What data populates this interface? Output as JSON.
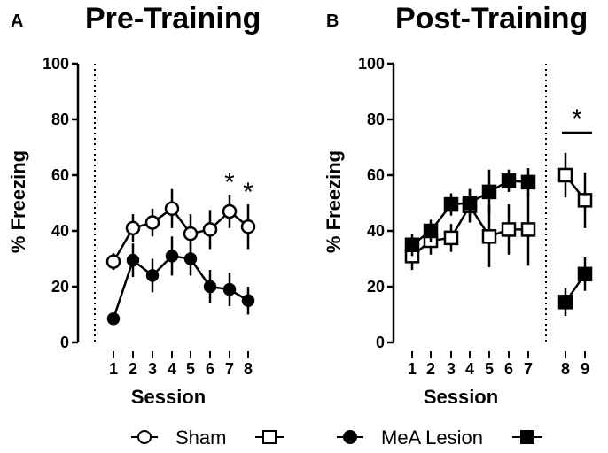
{
  "chart_data": [
    {
      "panel": "A",
      "type": "line",
      "title": "Pre-Training",
      "xlabel": "Session",
      "ylabel": "% Freezing",
      "ylim": [
        0,
        100
      ],
      "yticks": [
        "0",
        "20",
        "40",
        "60",
        "80",
        "100"
      ],
      "categories": [
        "1",
        "2",
        "3",
        "4",
        "5",
        "6",
        "7",
        "8"
      ],
      "series": [
        {
          "name": "Sham",
          "marker": "open-circle",
          "values": [
            29,
            41,
            43,
            48,
            39,
            40.5,
            47,
            41.5
          ],
          "errors": [
            3,
            5,
            5,
            7,
            7,
            7,
            6,
            8
          ]
        },
        {
          "name": "MeA Lesion",
          "marker": "filled-circle",
          "values": [
            8.5,
            29.5,
            24,
            31,
            30,
            20,
            19,
            15
          ],
          "errors": [
            1.5,
            6,
            6,
            7,
            6,
            6,
            6,
            5
          ]
        }
      ],
      "annotations": [
        {
          "text": "*",
          "category": "7"
        },
        {
          "text": "*",
          "category": "8"
        }
      ]
    },
    {
      "panel": "B",
      "type": "line",
      "title": "Post-Training",
      "xlabel": "Session",
      "ylabel": "% Freezing",
      "ylim": [
        0,
        100
      ],
      "yticks": [
        "0",
        "20",
        "40",
        "60",
        "80",
        "100"
      ],
      "categories": [
        "1",
        "2",
        "3",
        "4",
        "5",
        "6",
        "7"
      ],
      "extra_categories": [
        "8",
        "9"
      ],
      "series": [
        {
          "name": "Sham",
          "marker": "open-square",
          "values": [
            31,
            36.5,
            37.5,
            49,
            38,
            40.5,
            40.5
          ],
          "errors": [
            5,
            5,
            5,
            6,
            11,
            9,
            13
          ],
          "extra_values": [
            60,
            51
          ],
          "extra_errors": [
            8,
            10
          ]
        },
        {
          "name": "MeA Lesion",
          "marker": "filled-square",
          "values": [
            35,
            40,
            49.5,
            50,
            54,
            58,
            57.5
          ],
          "errors": [
            4,
            4,
            4,
            5,
            8,
            4,
            5
          ],
          "extra_values": [
            14.5,
            24.5
          ],
          "extra_errors": [
            5,
            6
          ]
        }
      ],
      "annotations": [
        {
          "text": "*",
          "between": [
            "8",
            "9"
          ]
        }
      ]
    }
  ],
  "legend": {
    "sham_label": "Sham",
    "lesion_label": "MeA Lesion"
  }
}
